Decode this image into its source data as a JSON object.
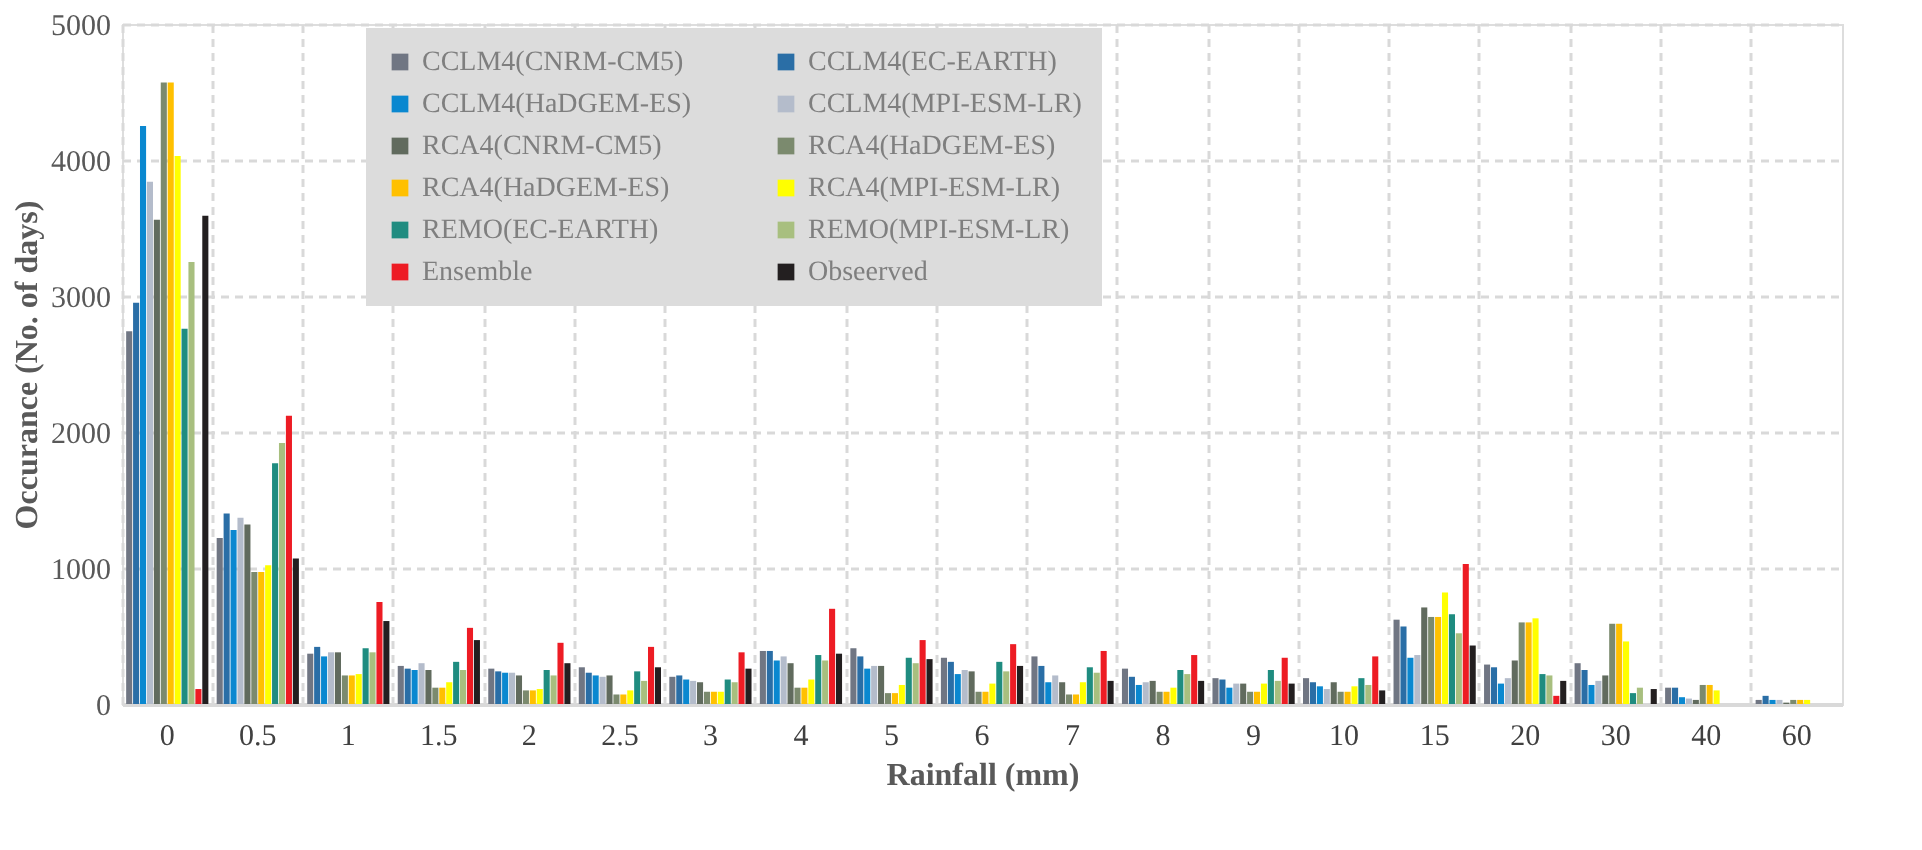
{
  "chart_data": {
    "type": "bar",
    "xlabel": "Rainfall (mm)",
    "ylabel": "Occurance (No. of days)",
    "categories": [
      "0",
      "0.5",
      "1",
      "1.5",
      "2",
      "2.5",
      "3",
      "4",
      "5",
      "6",
      "7",
      "8",
      "9",
      "10",
      "15",
      "20",
      "30",
      "40",
      "60"
    ],
    "series": [
      {
        "name": "CCLM4(CNRM-CM5)",
        "color": "#707683",
        "values": [
          2740,
          1220,
          370,
          280,
          260,
          270,
          200,
          390,
          410,
          340,
          350,
          260,
          190,
          190,
          620,
          290,
          300,
          120,
          30
        ]
      },
      {
        "name": "CCLM4(EC-EARTH)",
        "color": "#2a6ea6",
        "values": [
          2950,
          1400,
          420,
          260,
          240,
          230,
          210,
          390,
          350,
          310,
          280,
          200,
          180,
          160,
          570,
          270,
          250,
          120,
          60
        ]
      },
      {
        "name": "CCLM4(HaDGEM-ES)",
        "color": "#0a88d0",
        "values": [
          4250,
          1280,
          350,
          250,
          230,
          210,
          180,
          320,
          260,
          220,
          160,
          140,
          120,
          130,
          340,
          150,
          140,
          50,
          30
        ]
      },
      {
        "name": "CCLM4(MPI-ESM-LR)",
        "color": "#b4bccb",
        "values": [
          3840,
          1370,
          380,
          300,
          230,
          200,
          170,
          350,
          280,
          250,
          210,
          160,
          150,
          110,
          360,
          190,
          170,
          40,
          30
        ]
      },
      {
        "name": "RCA4(CNRM-CM5)",
        "color": "#616b5e",
        "values": [
          3560,
          1320,
          380,
          250,
          210,
          210,
          160,
          300,
          280,
          240,
          160,
          170,
          150,
          160,
          710,
          320,
          210,
          30,
          10
        ]
      },
      {
        "name": "RCA4(HaDGEM-ES)",
        "color": "#7b8a6e",
        "values": [
          4570,
          970,
          210,
          120,
          100,
          70,
          90,
          120,
          80,
          90,
          70,
          90,
          90,
          90,
          640,
          600,
          590,
          140,
          30
        ]
      },
      {
        "name": "RCA4(HaDGEM-ES)",
        "color": "#ffc000",
        "values": [
          4570,
          970,
          210,
          120,
          100,
          70,
          90,
          120,
          80,
          90,
          70,
          90,
          90,
          90,
          640,
          600,
          590,
          140,
          30
        ]
      },
      {
        "name": "RCA4(MPI-ESM-LR)",
        "color": "#ffff00",
        "values": [
          4030,
          1020,
          220,
          160,
          110,
          100,
          90,
          180,
          140,
          150,
          160,
          120,
          150,
          130,
          820,
          630,
          460,
          100,
          30
        ]
      },
      {
        "name": "REMO(EC-EARTH)",
        "color": "#1f8c80",
        "values": [
          2760,
          1770,
          410,
          310,
          250,
          240,
          180,
          360,
          340,
          310,
          270,
          250,
          250,
          190,
          660,
          220,
          80,
          0,
          0
        ]
      },
      {
        "name": "REMO(MPI-ESM-LR)",
        "color": "#a8bf7f",
        "values": [
          3250,
          1920,
          380,
          250,
          210,
          170,
          160,
          320,
          300,
          240,
          230,
          220,
          170,
          140,
          520,
          210,
          120,
          0,
          0
        ]
      },
      {
        "name": "Ensemble",
        "color": "#ed1c24",
        "values": [
          110,
          2120,
          750,
          560,
          450,
          420,
          380,
          700,
          470,
          440,
          390,
          360,
          340,
          350,
          1030,
          60,
          0,
          0,
          0
        ]
      },
      {
        "name": "Obseerved",
        "color": "#231f20",
        "values": [
          3590,
          1070,
          610,
          470,
          300,
          270,
          260,
          370,
          330,
          280,
          170,
          170,
          150,
          100,
          430,
          170,
          110,
          0,
          0
        ]
      }
    ],
    "ylim": [
      0,
      5000
    ],
    "yticks": [
      0,
      1000,
      2000,
      3000,
      4000,
      5000
    ],
    "grid": true,
    "legend": "top"
  }
}
